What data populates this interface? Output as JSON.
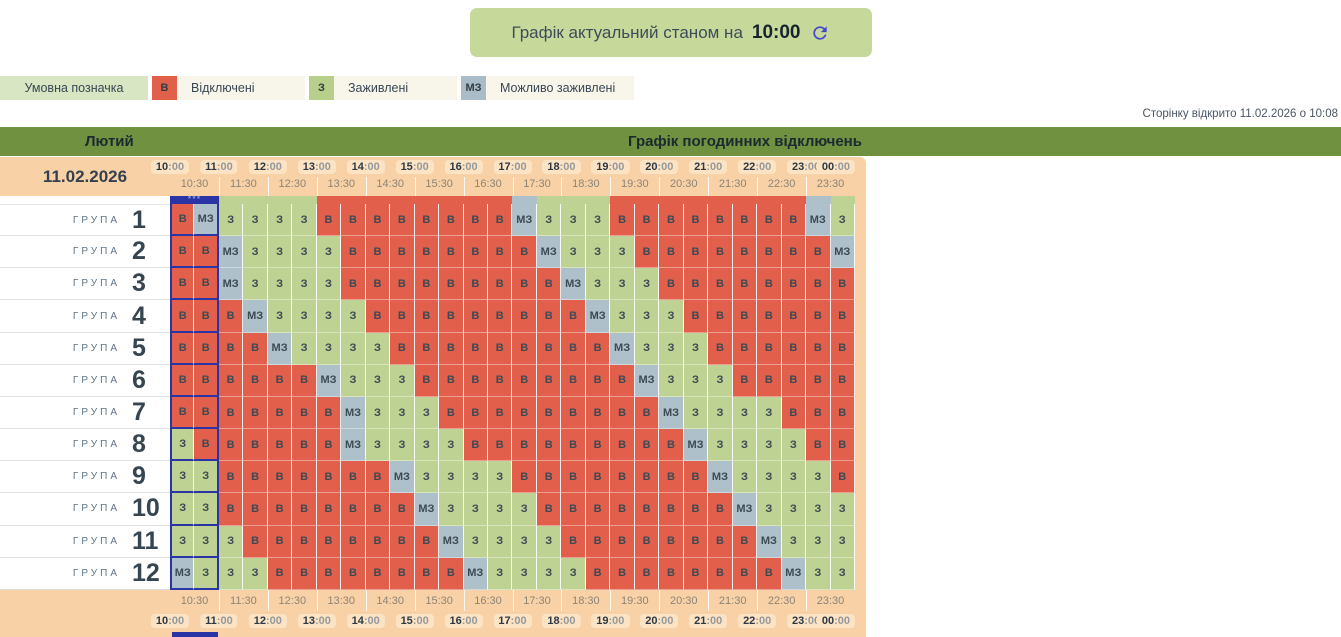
{
  "banner": {
    "label": "Графік актуальний станом на",
    "time": "10:00"
  },
  "page_note": "Сторінку відкрито 11.02.2026 о 10:08",
  "month_bar": {
    "month": "Лютий",
    "title": "Графік погодинних відключень"
  },
  "legend": {
    "title": "Умовна позначка",
    "items": [
      {
        "code": "В",
        "label": "Відключені",
        "color": "#e0604a"
      },
      {
        "code": "З",
        "label": "Заживлені",
        "color": "#b8cf8c"
      },
      {
        "code": "МЗ",
        "label": "Можливо заживлені",
        "color": "#a9bcc7"
      }
    ]
  },
  "schedule": {
    "date": "11.02.2026",
    "hour_labels": [
      "10:00",
      "11:00",
      "12:00",
      "13:00",
      "14:00",
      "15:00",
      "16:00",
      "17:00",
      "18:00",
      "19:00",
      "20:00",
      "21:00",
      "22:00",
      "23:00",
      "00:00"
    ],
    "half_hour_labels": [
      "10:30",
      "11:30",
      "12:30",
      "13:30",
      "14:30",
      "15:30",
      "16:30",
      "17:30",
      "18:30",
      "19:30",
      "20:30",
      "21:30",
      "22:30",
      "23:30"
    ],
    "current_time_marker": "***",
    "status_colors": {
      "В": "#e2604b",
      "З": "#bed293",
      "МЗ": "#aec0ca"
    },
    "accent_blue": "#2b34a4",
    "group_label": "ГРУПА",
    "groups": [
      {
        "number": "1",
        "cells": [
          "В",
          "МЗ",
          "З",
          "З",
          "З",
          "З",
          "В",
          "В",
          "В",
          "В",
          "В",
          "В",
          "В",
          "В",
          "МЗ",
          "З",
          "З",
          "З",
          "В",
          "В",
          "В",
          "В",
          "В",
          "В",
          "В",
          "В",
          "МЗ",
          "З"
        ]
      },
      {
        "number": "2",
        "cells": [
          "В",
          "В",
          "МЗ",
          "З",
          "З",
          "З",
          "З",
          "В",
          "В",
          "В",
          "В",
          "В",
          "В",
          "В",
          "В",
          "МЗ",
          "З",
          "З",
          "З",
          "В",
          "В",
          "В",
          "В",
          "В",
          "В",
          "В",
          "В",
          "МЗ"
        ]
      },
      {
        "number": "3",
        "cells": [
          "В",
          "В",
          "МЗ",
          "З",
          "З",
          "З",
          "З",
          "В",
          "В",
          "В",
          "В",
          "В",
          "В",
          "В",
          "В",
          "В",
          "МЗ",
          "З",
          "З",
          "З",
          "В",
          "В",
          "В",
          "В",
          "В",
          "В",
          "В",
          "В"
        ]
      },
      {
        "number": "4",
        "cells": [
          "В",
          "В",
          "В",
          "МЗ",
          "З",
          "З",
          "З",
          "З",
          "В",
          "В",
          "В",
          "В",
          "В",
          "В",
          "В",
          "В",
          "В",
          "МЗ",
          "З",
          "З",
          "З",
          "В",
          "В",
          "В",
          "В",
          "В",
          "В",
          "В"
        ]
      },
      {
        "number": "5",
        "cells": [
          "В",
          "В",
          "В",
          "В",
          "МЗ",
          "З",
          "З",
          "З",
          "З",
          "В",
          "В",
          "В",
          "В",
          "В",
          "В",
          "В",
          "В",
          "В",
          "МЗ",
          "З",
          "З",
          "З",
          "В",
          "В",
          "В",
          "В",
          "В",
          "В"
        ]
      },
      {
        "number": "6",
        "cells": [
          "В",
          "В",
          "В",
          "В",
          "В",
          "В",
          "МЗ",
          "З",
          "З",
          "З",
          "В",
          "В",
          "В",
          "В",
          "В",
          "В",
          "В",
          "В",
          "В",
          "МЗ",
          "З",
          "З",
          "З",
          "В",
          "В",
          "В",
          "В",
          "В"
        ]
      },
      {
        "number": "7",
        "cells": [
          "В",
          "В",
          "В",
          "В",
          "В",
          "В",
          "В",
          "МЗ",
          "З",
          "З",
          "З",
          "В",
          "В",
          "В",
          "В",
          "В",
          "В",
          "В",
          "В",
          "В",
          "МЗ",
          "З",
          "З",
          "З",
          "З",
          "В",
          "В",
          "В"
        ]
      },
      {
        "number": "8",
        "cells": [
          "З",
          "В",
          "В",
          "В",
          "В",
          "В",
          "В",
          "МЗ",
          "З",
          "З",
          "З",
          "З",
          "В",
          "В",
          "В",
          "В",
          "В",
          "В",
          "В",
          "В",
          "В",
          "МЗ",
          "З",
          "З",
          "З",
          "З",
          "В",
          "В"
        ]
      },
      {
        "number": "9",
        "cells": [
          "З",
          "З",
          "В",
          "В",
          "В",
          "В",
          "В",
          "В",
          "В",
          "МЗ",
          "З",
          "З",
          "З",
          "З",
          "В",
          "В",
          "В",
          "В",
          "В",
          "В",
          "В",
          "В",
          "МЗ",
          "З",
          "З",
          "З",
          "З",
          "В"
        ]
      },
      {
        "number": "10",
        "cells": [
          "З",
          "З",
          "В",
          "В",
          "В",
          "В",
          "В",
          "В",
          "В",
          "В",
          "МЗ",
          "З",
          "З",
          "З",
          "З",
          "В",
          "В",
          "В",
          "В",
          "В",
          "В",
          "В",
          "В",
          "МЗ",
          "З",
          "З",
          "З",
          "З"
        ]
      },
      {
        "number": "11",
        "cells": [
          "З",
          "З",
          "З",
          "В",
          "В",
          "В",
          "В",
          "В",
          "В",
          "В",
          "В",
          "МЗ",
          "З",
          "З",
          "З",
          "З",
          "В",
          "В",
          "В",
          "В",
          "В",
          "В",
          "В",
          "В",
          "МЗ",
          "З",
          "З",
          "З"
        ]
      },
      {
        "number": "12",
        "cells": [
          "МЗ",
          "З",
          "З",
          "З",
          "В",
          "В",
          "В",
          "В",
          "В",
          "В",
          "В",
          "В",
          "МЗ",
          "З",
          "З",
          "З",
          "З",
          "В",
          "В",
          "В",
          "В",
          "В",
          "В",
          "В",
          "В",
          "МЗ",
          "З",
          "З"
        ]
      }
    ]
  }
}
